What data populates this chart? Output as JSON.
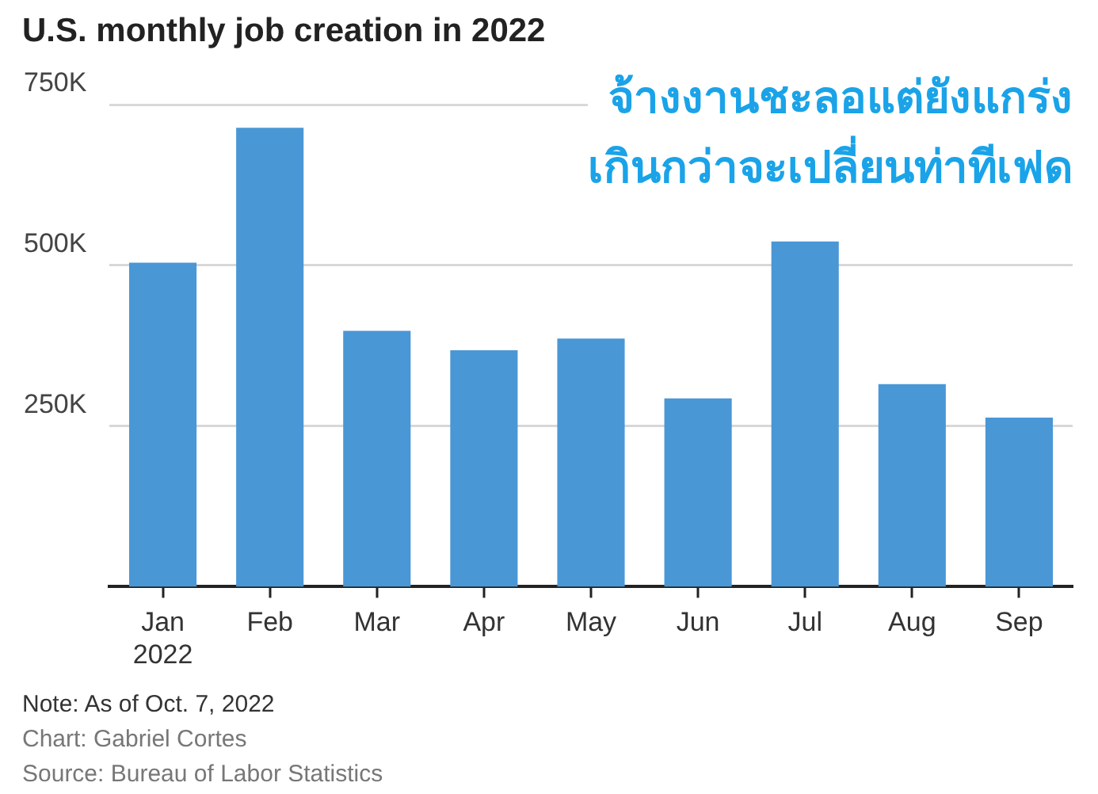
{
  "chart_data": {
    "type": "bar",
    "title": "U.S. monthly job creation in 2022",
    "categories": [
      "Jan 2022",
      "Feb",
      "Mar",
      "Apr",
      "May",
      "Jun",
      "Jul",
      "Aug",
      "Sep"
    ],
    "values": [
      504,
      714,
      398,
      368,
      386,
      293,
      537,
      315,
      263
    ],
    "color": "#4a97d6",
    "ylim": [
      0,
      750
    ],
    "yticks": [
      {
        "value": 250,
        "label": "250K"
      },
      {
        "value": 500,
        "label": "500K"
      },
      {
        "value": 750,
        "label": "750K"
      }
    ],
    "grid": "y",
    "legend": false,
    "annotations": [
      "จ้างงานชะลอแต่ยังแกร่ง\nเกินกว่าจะเปลี่ยนท่าทีเฟด",
      "Note: As of Oct. 7, 2022",
      "Chart: Gabriel Cortes",
      "Source: Bureau of Labor Statistics"
    ]
  }
}
